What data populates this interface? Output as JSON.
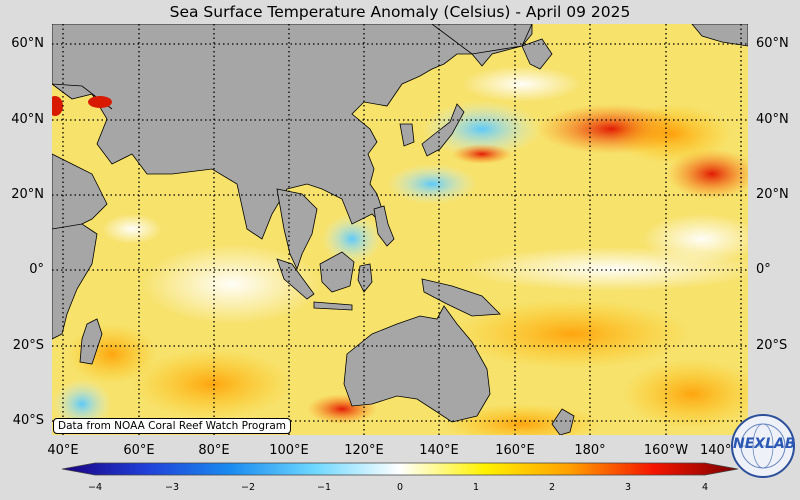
{
  "title": "Sea Surface Temperature Anomaly (Celsius) - April 09 2025",
  "lat_labels": [
    "60°N",
    "40°N",
    "20°N",
    "0°",
    "20°S",
    "40°S"
  ],
  "lon_labels": [
    "40°E",
    "60°E",
    "80°E",
    "100°E",
    "120°E",
    "140°E",
    "160°E",
    "180°",
    "160°W",
    "140°W"
  ],
  "credit": "Data from NOAA Coral Reef Watch Program",
  "colorbar": {
    "ticks": [
      "−4",
      "−3",
      "−2",
      "−1",
      "0",
      "1",
      "2",
      "3",
      "4"
    ],
    "colors": [
      "#1a0082",
      "#2140d8",
      "#1a8cf0",
      "#6fd8ff",
      "#ffffff",
      "#fff200",
      "#ffa000",
      "#f51500",
      "#7a0000"
    ]
  },
  "logo": "NEXLAB",
  "colors": {
    "land": "#a6a6a6",
    "background": "#dcdcdc"
  }
}
